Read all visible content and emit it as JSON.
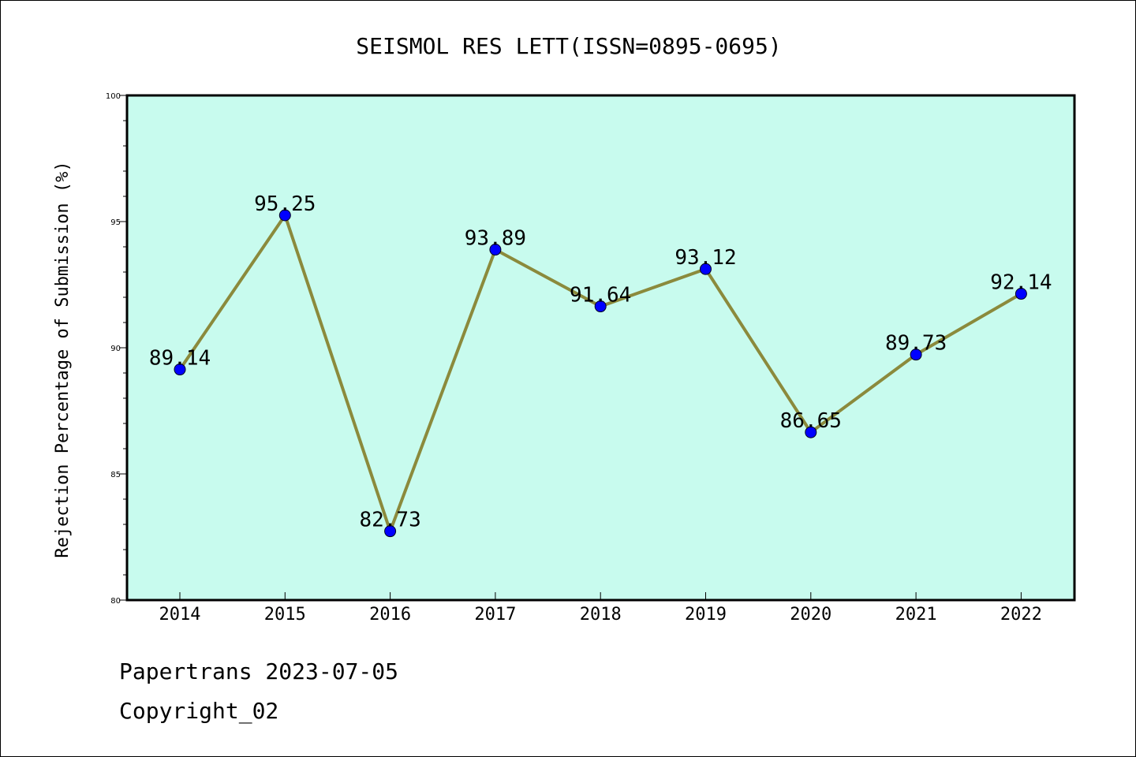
{
  "chart_data": {
    "type": "line",
    "title": "SEISMOL RES LETT(ISSN=0895-0695)",
    "xlabel": "",
    "ylabel": "Rejection Percentage of Submission (%)",
    "categories": [
      "2014",
      "2015",
      "2016",
      "2017",
      "2018",
      "2019",
      "2020",
      "2021",
      "2022"
    ],
    "values": [
      89.14,
      95.25,
      82.73,
      93.89,
      91.64,
      93.12,
      86.65,
      89.73,
      92.14
    ],
    "data_labels": [
      "89.14",
      "95.25",
      "82.73",
      "93.89",
      "91.64",
      "93.12",
      "86.65",
      "89.73",
      "92.14"
    ],
    "ylim": [
      80,
      100
    ],
    "yticks": [
      "80",
      "85",
      "90",
      "95",
      "100"
    ],
    "grid": false,
    "legend": "none",
    "colors": {
      "plot_background": "#c8fbee",
      "line": "#8b8a3c",
      "marker": "#0000ff"
    }
  },
  "footer": {
    "source": "Papertrans 2023-07-05",
    "copyright": "Copyright_02"
  }
}
